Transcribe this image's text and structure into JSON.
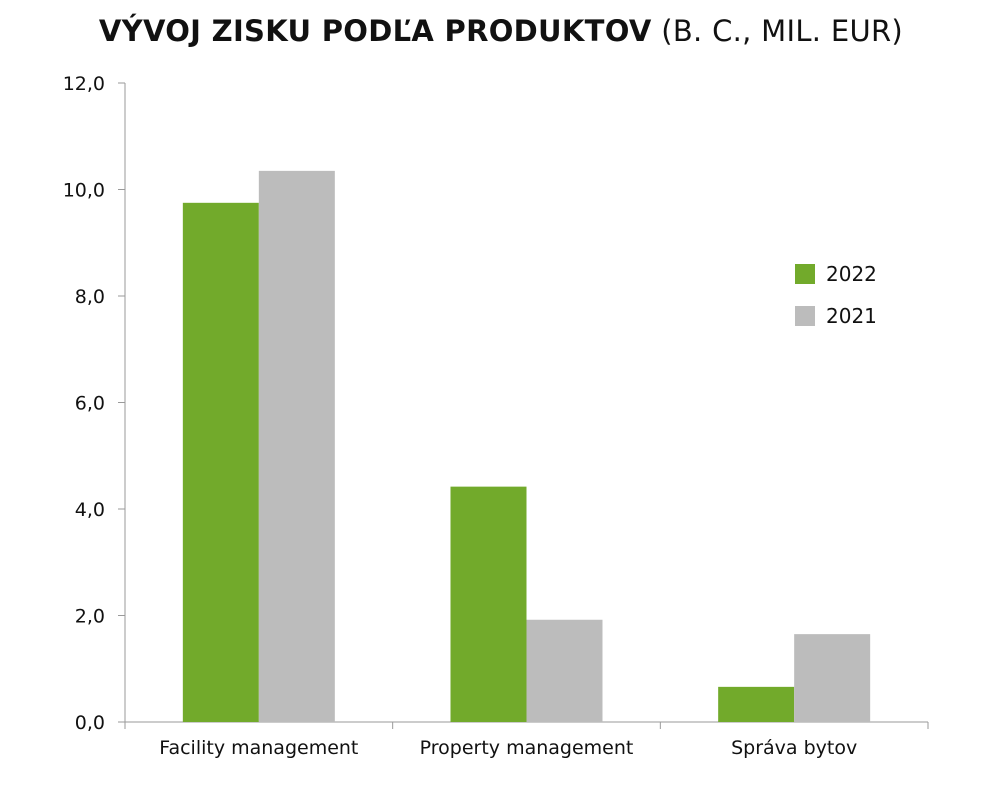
{
  "chart_data": {
    "type": "bar",
    "title": "VÝVOJ ZISKU PODĽA PRODUKTOV",
    "subtitle": "(B. C., MIL. EUR)",
    "categories": [
      "Facility management",
      "Property management",
      "Správa bytov"
    ],
    "series": [
      {
        "name": "2022",
        "color": "#72aa2b",
        "values": [
          9.75,
          4.42,
          0.66
        ]
      },
      {
        "name": "2021",
        "color": "#bcbcbc",
        "values": [
          10.35,
          1.92,
          1.65
        ]
      }
    ],
    "ylim": [
      0,
      12
    ],
    "yticks": [
      "0,0",
      "2,0",
      "4,0",
      "6,0",
      "8,0",
      "10,0",
      "12,0"
    ],
    "ytick_values": [
      0,
      2,
      4,
      6,
      8,
      10,
      12
    ],
    "xlabel": "",
    "ylabel": "",
    "grid": false,
    "legend_position": "right"
  }
}
